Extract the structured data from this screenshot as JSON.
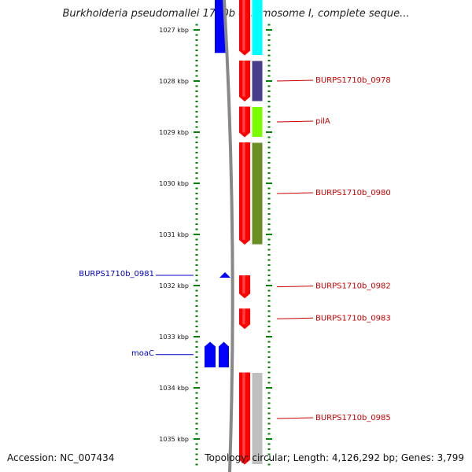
{
  "title": "Burkholderia pseudomallei 1710b chromosome I, complete seque...",
  "footer": {
    "accession": "Accession: NC_007434",
    "summary": "Topology: circular; Length: 4,126,292 bp; Genes: 3,799"
  },
  "colors": {
    "reverse_strand": "#0000ff",
    "forward_strand": "#ff0000",
    "label_reverse": "#0000cc",
    "label_forward": "#cc0000",
    "tick": "#008000",
    "backbone": "#888888"
  },
  "axis": {
    "unit": "kbp",
    "ticks": [
      {
        "value": 1027,
        "label": "1027 kbp"
      },
      {
        "value": 1028,
        "label": "1028 kbp"
      },
      {
        "value": 1029,
        "label": "1029 kbp"
      },
      {
        "value": 1030,
        "label": "1030 kbp"
      },
      {
        "value": 1031,
        "label": "1031 kbp"
      },
      {
        "value": 1032,
        "label": "1032 kbp"
      },
      {
        "value": 1033,
        "label": "1033 kbp"
      },
      {
        "value": 1034,
        "label": "1034 kbp"
      },
      {
        "value": 1035,
        "label": "1035 kbp"
      }
    ]
  },
  "genes": [
    {
      "label": "",
      "strand": "reverse",
      "start": 1026.4,
      "end": 1027.45
    },
    {
      "label": "",
      "strand": "forward",
      "start": 1026.4,
      "end": 1027.5
    },
    {
      "label": "BURPS1710b_0978",
      "strand": "forward",
      "start": 1027.6,
      "end": 1028.4
    },
    {
      "label": "pilA",
      "strand": "forward",
      "start": 1028.5,
      "end": 1029.1
    },
    {
      "label": "BURPS1710b_0980",
      "strand": "forward",
      "start": 1029.2,
      "end": 1031.2
    },
    {
      "label": "BURPS1710b_0981",
      "strand": "reverse",
      "start": 1031.75,
      "end": 1031.85
    },
    {
      "label": "BURPS1710b_0982",
      "strand": "forward",
      "start": 1031.8,
      "end": 1032.25
    },
    {
      "label": "BURPS1710b_0983",
      "strand": "forward",
      "start": 1032.45,
      "end": 1032.85
    },
    {
      "label": "moaC",
      "strand": "reverse",
      "start": 1033.1,
      "end": 1033.6
    },
    {
      "label": "BURPS1710b_0985",
      "strand": "forward",
      "start": 1033.7,
      "end": 1035.5
    }
  ],
  "feature_bands": [
    {
      "color": "#00ffff",
      "start": 1026.4,
      "end": 1027.5
    },
    {
      "color": "#483d8b",
      "start": 1027.6,
      "end": 1028.4
    },
    {
      "color": "#7cfc00",
      "start": 1028.5,
      "end": 1029.1
    },
    {
      "color": "#6b8e23",
      "start": 1029.2,
      "end": 1031.2
    },
    {
      "color": "#c0c0c0",
      "start": 1033.7,
      "end": 1035.5
    }
  ]
}
